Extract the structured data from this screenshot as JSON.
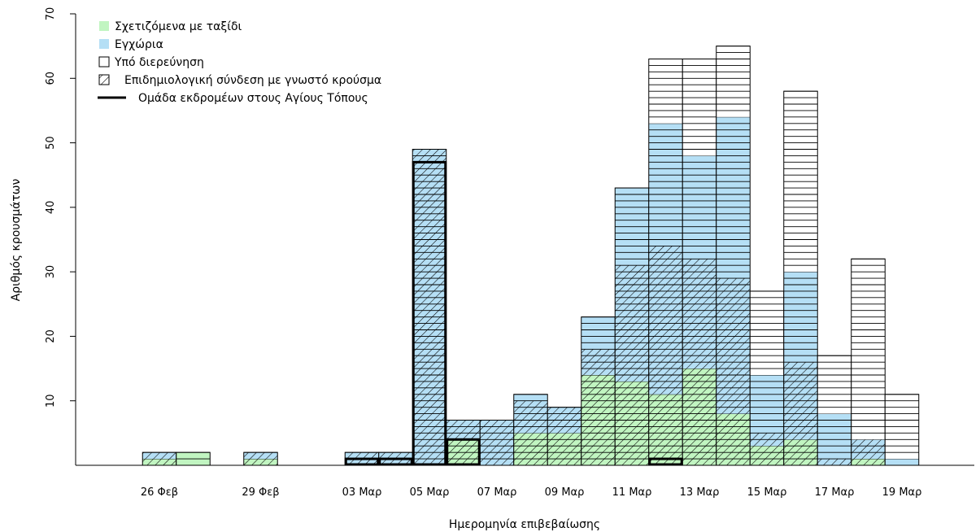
{
  "chart_data": {
    "type": "bar",
    "xlabel": "Ημερομηνία επιβεβαίωσης",
    "ylabel": "Αριθμός κρουσμάτων",
    "ylim": [
      0,
      70
    ],
    "yticks": [
      10,
      20,
      30,
      40,
      50,
      60,
      70
    ],
    "grid": false,
    "legend_position": "top-left",
    "x_tick_labels": [
      "26 Φεβ",
      "29 Φεβ",
      "03 Μαρ",
      "05 Μαρ",
      "07 Μαρ",
      "09 Μαρ",
      "11 Μαρ",
      "13 Μαρ",
      "15 Μαρ",
      "17 Μαρ",
      "19 Μαρ"
    ],
    "categories": [
      "26 Φεβ",
      "27 Φεβ",
      "29 Φεβ",
      "03 Μαρ",
      "04 Μαρ",
      "05 Μαρ",
      "06 Μαρ",
      "07 Μαρ",
      "08 Μαρ",
      "09 Μαρ",
      "10 Μαρ",
      "11 Μαρ",
      "12 Μαρ",
      "13 Μαρ",
      "14 Μαρ",
      "15 Μαρ",
      "16 Μαρ",
      "17 Μαρ",
      "18 Μαρ",
      "19 Μαρ"
    ],
    "series": [
      {
        "name": "Σχετιζόμενα με ταξίδι",
        "color": "#c1f5c1",
        "values": [
          1,
          2,
          1,
          0,
          0,
          0,
          4,
          0,
          5,
          5,
          14,
          13,
          11,
          15,
          8,
          3,
          4,
          0,
          1,
          0
        ]
      },
      {
        "name": "Εγχώρια",
        "color": "#b5dff5",
        "values": [
          1,
          0,
          1,
          2,
          2,
          49,
          3,
          7,
          6,
          4,
          9,
          30,
          42,
          33,
          46,
          11,
          26,
          8,
          3,
          1
        ]
      },
      {
        "name": "Υπό διερεύνηση",
        "color": "#ffffff",
        "values": [
          0,
          0,
          0,
          0,
          0,
          0,
          0,
          0,
          0,
          0,
          0,
          0,
          10,
          15,
          11,
          13,
          28,
          9,
          28,
          10
        ]
      }
    ],
    "epi_linked": [
      2,
      0,
      2,
      2,
      2,
      49,
      7,
      7,
      10,
      9,
      18,
      31,
      34,
      32,
      29,
      5,
      16,
      1,
      4,
      0
    ],
    "pilgrim_group": [
      0,
      0,
      0,
      1,
      1,
      47,
      4,
      0,
      0,
      0,
      0,
      0,
      1,
      0,
      0,
      0,
      0,
      0,
      0,
      0
    ],
    "legend": [
      {
        "label": "Σχετιζόμενα με ταξίδι",
        "kind": "fill",
        "color": "#c1f5c1"
      },
      {
        "label": "Εγχώρια",
        "kind": "fill",
        "color": "#b5dff5"
      },
      {
        "label": "Υπό διερεύνηση",
        "kind": "box",
        "color": "#ffffff"
      },
      {
        "label": "Επιδημιολογική σύνδεση με γνωστό κρούσμα",
        "kind": "hatch",
        "color": "#000000"
      },
      {
        "label": "Ομάδα εκδρομέων στους Αγίους Τόπους",
        "kind": "line",
        "color": "#000000"
      }
    ]
  }
}
